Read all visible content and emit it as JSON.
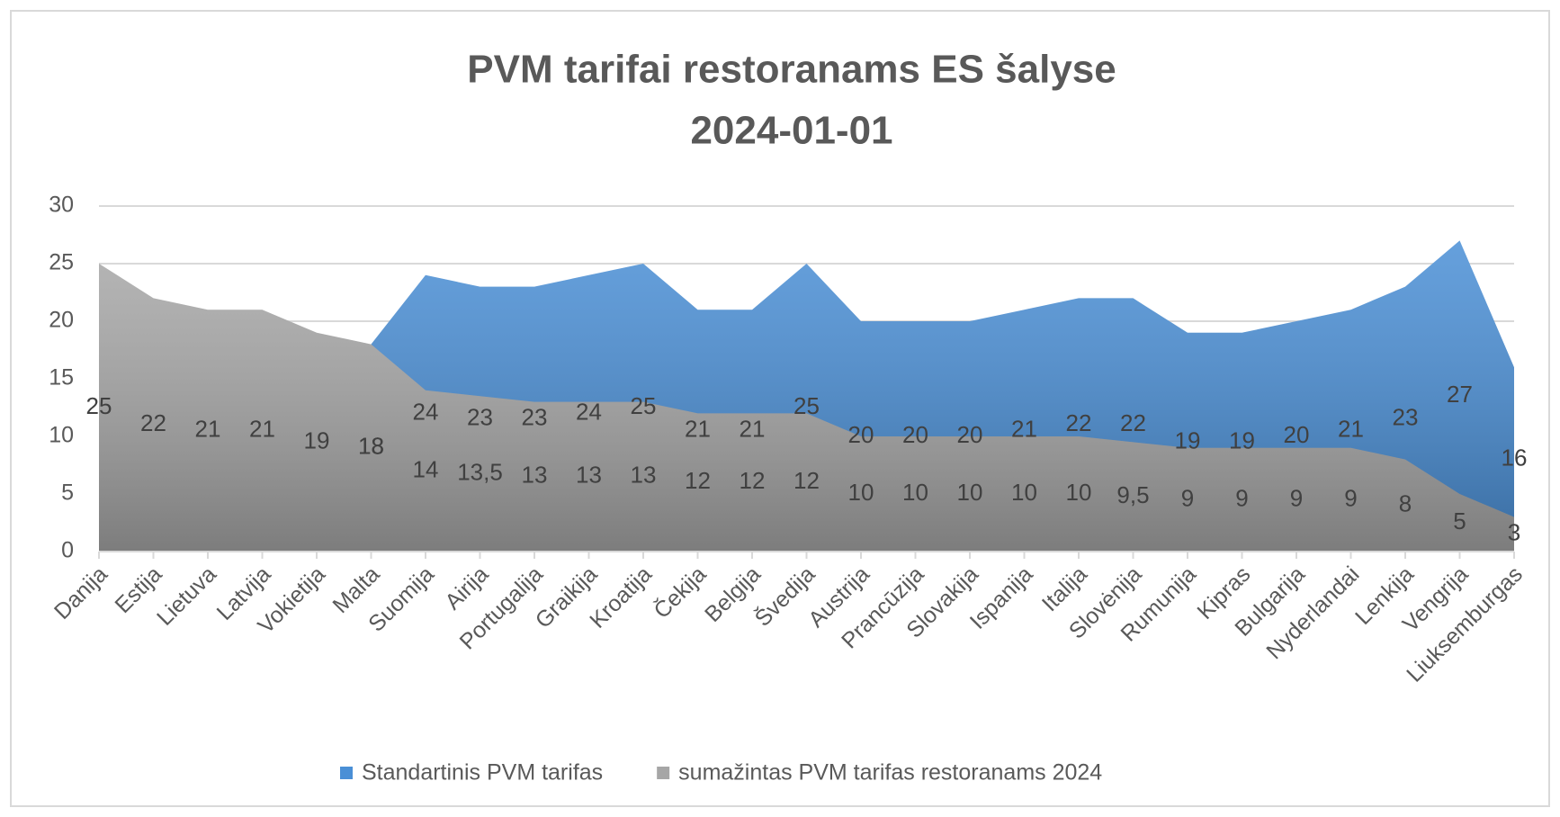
{
  "chart_data": {
    "type": "area",
    "title": "PVM tarifai restoranams ES šalyse",
    "subtitle": "2024-01-01",
    "categories": [
      "Danija",
      "Estija",
      "Lietuva",
      "Latvija",
      "Vokietija",
      "Malta",
      "Suomija",
      "Airija",
      "Portugalija",
      "Graikija",
      "Kroatija",
      "Čekija",
      "Belgija",
      "Švedija",
      "Austrija",
      "Prancūzija",
      "Slovakija",
      "Ispanija",
      "Italija",
      "Slovėnija",
      "Rumunija",
      "Kipras",
      "Bulgarija",
      "Nyderlandai",
      "Lenkija",
      "Vengrija",
      "Liuksemburgas"
    ],
    "series": [
      {
        "name": "Standartinis PVM tarifas",
        "color": "#4a8fd6",
        "values": [
          null,
          null,
          null,
          null,
          null,
          18,
          24,
          23,
          23,
          24,
          25,
          21,
          21,
          25,
          20,
          20,
          20,
          21,
          22,
          22,
          19,
          19,
          20,
          21,
          23,
          27,
          16
        ]
      },
      {
        "name": "sumažintas PVM tarifas restoranams 2024",
        "color": "#a6a6a6",
        "values": [
          25,
          22,
          21,
          21,
          19,
          18,
          14,
          13.5,
          13,
          13,
          13,
          12,
          12,
          12,
          10,
          10,
          10,
          10,
          10,
          9.5,
          9,
          9,
          9,
          9,
          8,
          5,
          3
        ],
        "value_labels": [
          "25",
          "22",
          "21",
          "21",
          "19",
          "18",
          "14",
          "13,5",
          "13",
          "13",
          "13",
          "12",
          "12",
          "12",
          "10",
          "10",
          "10",
          "10",
          "10",
          "9,5",
          "9",
          "9",
          "9",
          "9",
          "8",
          "5",
          "3"
        ]
      }
    ],
    "ylim": [
      0,
      30
    ],
    "yticks": [
      0,
      5,
      10,
      15,
      20,
      25,
      30
    ],
    "grid": true,
    "legend": "bottom"
  }
}
